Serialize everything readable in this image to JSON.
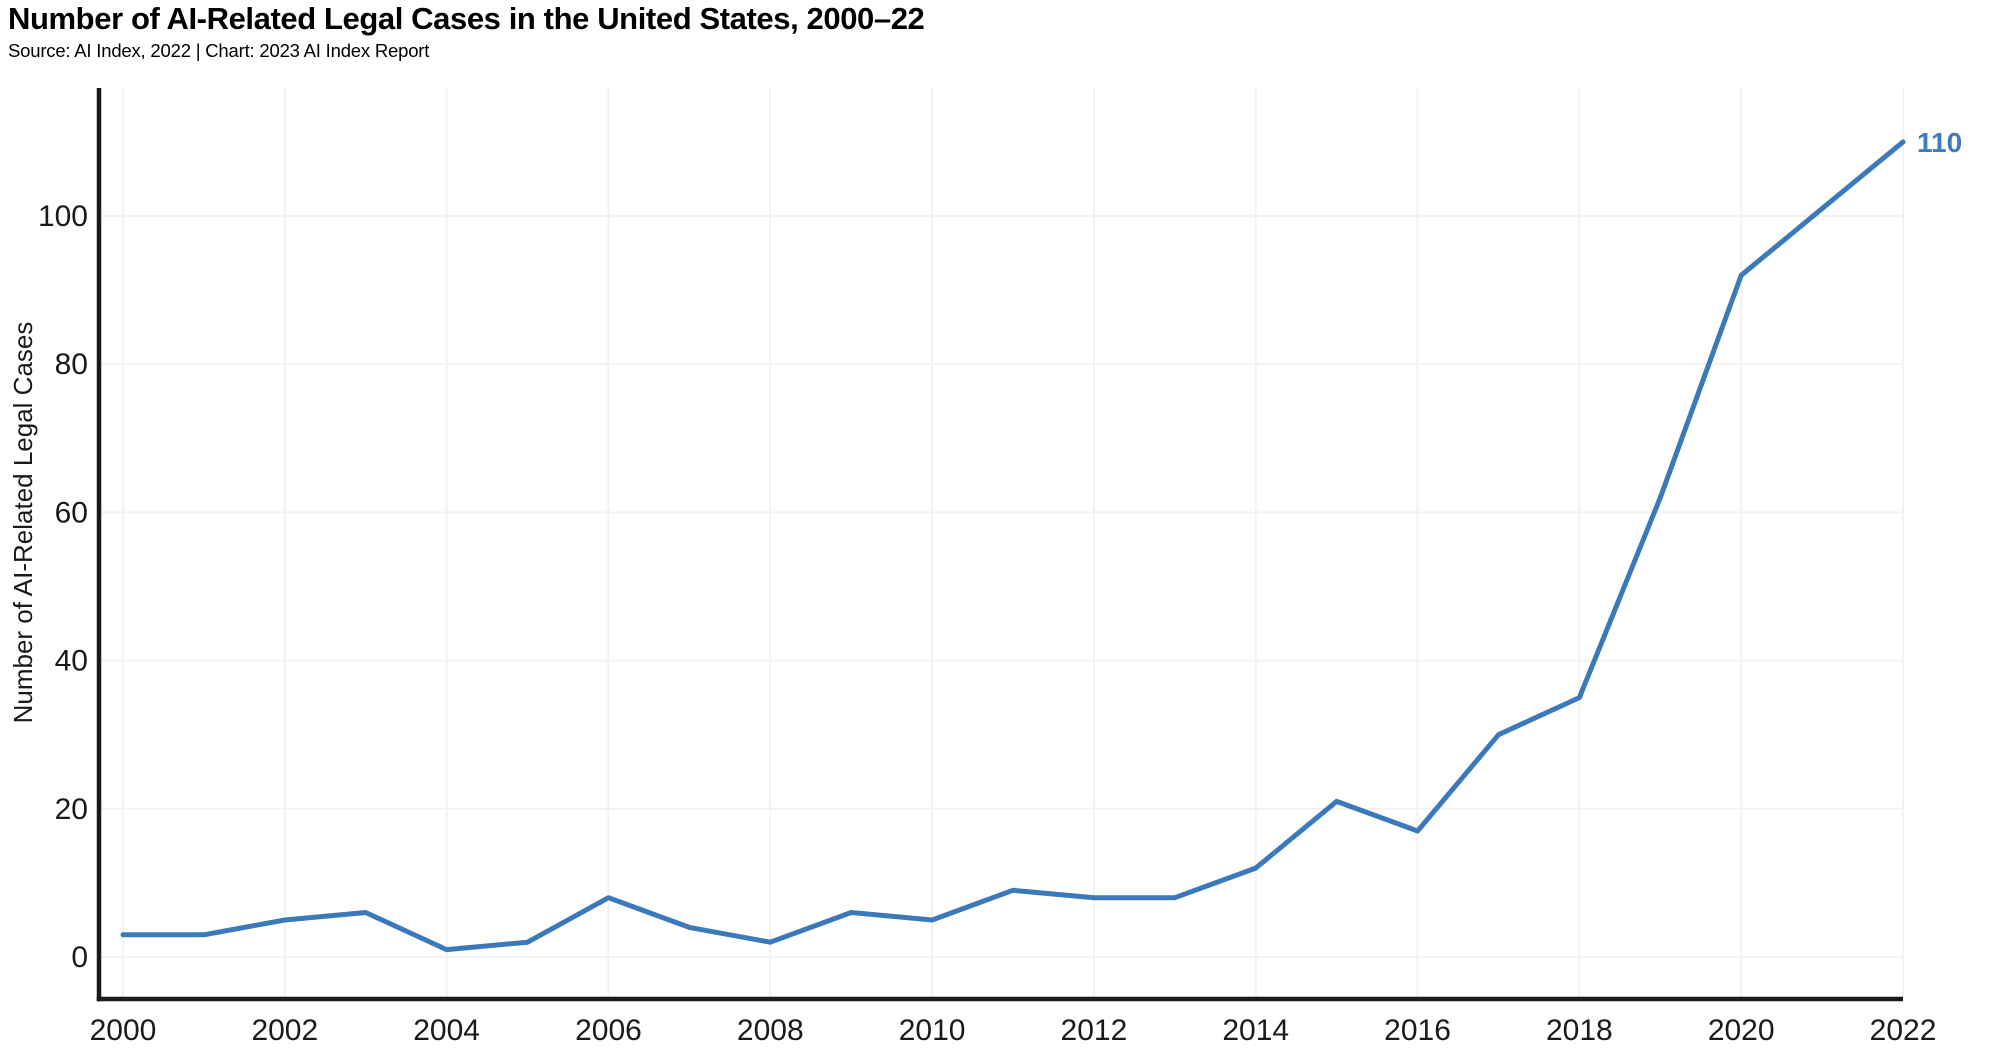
{
  "header": {
    "title": "Number of AI-Related Legal Cases in the United States, 2000–22",
    "subtitle": "Source: AI Index, 2022 | Chart: 2023 AI Index Report"
  },
  "chart_data": {
    "type": "line",
    "title": "Number of AI-Related Legal Cases in the United States, 2000–22",
    "x": [
      2000,
      2001,
      2002,
      2003,
      2004,
      2005,
      2006,
      2007,
      2008,
      2009,
      2010,
      2011,
      2012,
      2013,
      2014,
      2015,
      2016,
      2017,
      2018,
      2019,
      2020,
      2021,
      2022
    ],
    "values": [
      3,
      3,
      5,
      6,
      1,
      2,
      8,
      4,
      2,
      6,
      5,
      9,
      8,
      8,
      12,
      21,
      17,
      30,
      35,
      62,
      92,
      101,
      110
    ],
    "series_name": "AI-related legal cases",
    "xlabel": "",
    "ylabel": "Number of AI-Related Legal Cases",
    "yticks": [
      0,
      20,
      40,
      60,
      80,
      100
    ],
    "xticks": [
      2000,
      2002,
      2004,
      2006,
      2008,
      2010,
      2012,
      2014,
      2016,
      2018,
      2020,
      2022
    ],
    "ylim": [
      0,
      110
    ],
    "xlim": [
      2000,
      2022
    ],
    "grid": true,
    "legend_position": "none",
    "end_label": "110",
    "line_color": "#3b79ba",
    "end_label_color": "#3e7cbe"
  },
  "colors": {
    "background": "#ffffff",
    "axis": "#1a1a1a",
    "gridline": "#f2f2f2",
    "tick_text": "#1a1a1a"
  }
}
